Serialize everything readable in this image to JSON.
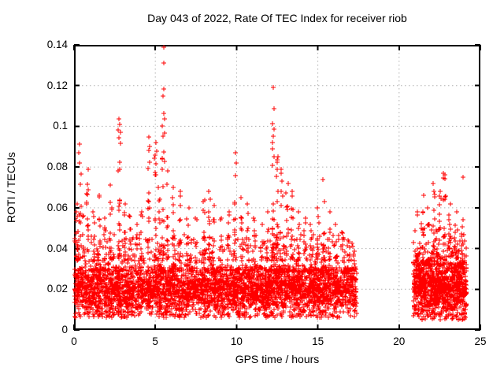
{
  "title": "Day 043 of 2022, Rate Of TEC Index for receiver riob",
  "chart_data": {
    "type": "scatter",
    "title": "Day 043 of 2022, Rate Of TEC Index for receiver riob",
    "xlabel": "GPS time / hours",
    "ylabel": "ROTI / TECUs",
    "xlim": [
      0,
      25
    ],
    "ylim": [
      0,
      0.14
    ],
    "xticks": [
      0,
      5,
      10,
      15,
      20,
      25
    ],
    "xtick_labels": [
      "0",
      "5",
      "10",
      "15",
      "20",
      "25"
    ],
    "yticks": [
      0,
      0.02,
      0.04,
      0.06,
      0.08,
      0.1,
      0.12,
      0.14
    ],
    "ytick_labels": [
      "0",
      "0.02",
      "0.04",
      "0.06",
      "0.08",
      "0.1",
      "0.12",
      "0.14"
    ],
    "grid": true,
    "legend": false,
    "marker": {
      "shape": "plus",
      "size": 7,
      "color": "#ff0000"
    },
    "colors": {
      "points": "#ff0000",
      "grid": "#b0b0b0",
      "axis": "#000000",
      "background": "#ffffff"
    },
    "series": [
      {
        "name": "ROTI",
        "seed": 1337,
        "bands": [
          {
            "x0": 0.03,
            "x1": 17.38,
            "n": 3900,
            "y_min": 0.006,
            "core_lo": 0.01,
            "core_hi": 0.031,
            "tail_hi": 0.047
          },
          {
            "x0": 20.88,
            "x1": 24.15,
            "n": 1050,
            "y_min": 0.005,
            "core_lo": 0.009,
            "core_hi": 0.034,
            "tail_hi": 0.05
          }
        ],
        "bursts": [
          [
            0.22,
            0.062,
            22
          ],
          [
            0.38,
            0.082,
            12
          ],
          [
            0.6,
            0.056,
            10
          ],
          [
            0.85,
            0.079,
            14
          ],
          [
            1.2,
            0.058,
            10
          ],
          [
            1.55,
            0.066,
            12
          ],
          [
            1.9,
            0.055,
            9
          ],
          [
            2.3,
            0.071,
            11
          ],
          [
            2.78,
            0.097,
            20
          ],
          [
            3.1,
            0.062,
            10
          ],
          [
            3.45,
            0.056,
            9
          ],
          [
            3.8,
            0.052,
            8
          ],
          [
            4.15,
            0.058,
            9
          ],
          [
            4.6,
            0.088,
            15
          ],
          [
            5.0,
            0.086,
            16
          ],
          [
            5.25,
            0.07,
            11
          ],
          [
            5.5,
            0.095,
            18
          ],
          [
            5.75,
            0.078,
            11
          ],
          [
            6.1,
            0.07,
            9
          ],
          [
            6.5,
            0.068,
            11
          ],
          [
            7.0,
            0.06,
            9
          ],
          [
            7.5,
            0.055,
            8
          ],
          [
            8.0,
            0.064,
            12
          ],
          [
            8.3,
            0.068,
            14
          ],
          [
            8.6,
            0.061,
            9
          ],
          [
            9.0,
            0.055,
            8
          ],
          [
            9.5,
            0.058,
            9
          ],
          [
            9.9,
            0.082,
            14
          ],
          [
            10.3,
            0.065,
            9
          ],
          [
            10.7,
            0.062,
            9
          ],
          [
            11.1,
            0.055,
            8
          ],
          [
            11.5,
            0.052,
            8
          ],
          [
            11.9,
            0.058,
            9
          ],
          [
            12.25,
            0.092,
            20
          ],
          [
            12.5,
            0.085,
            18
          ],
          [
            12.75,
            0.079,
            14
          ],
          [
            13.1,
            0.072,
            12
          ],
          [
            13.4,
            0.068,
            11
          ],
          [
            13.8,
            0.058,
            9
          ],
          [
            14.2,
            0.055,
            8
          ],
          [
            14.6,
            0.052,
            8
          ],
          [
            15.0,
            0.06,
            9
          ],
          [
            15.35,
            0.074,
            11
          ],
          [
            15.7,
            0.058,
            8
          ],
          [
            16.1,
            0.052,
            7
          ],
          [
            16.5,
            0.048,
            6
          ],
          [
            16.9,
            0.044,
            6
          ],
          [
            17.2,
            0.041,
            5
          ],
          [
            21.1,
            0.058,
            9
          ],
          [
            21.45,
            0.066,
            11
          ],
          [
            21.8,
            0.06,
            9
          ],
          [
            22.15,
            0.072,
            12
          ],
          [
            22.5,
            0.068,
            11
          ],
          [
            22.78,
            0.076,
            13
          ],
          [
            23.1,
            0.062,
            9
          ],
          [
            23.5,
            0.058,
            9
          ],
          [
            23.9,
            0.054,
            8
          ]
        ],
        "outliers": [
          [
            5.5,
            0.1388
          ],
          [
            5.5,
            0.131
          ],
          [
            5.53,
            0.1185
          ],
          [
            5.47,
            0.1148
          ],
          [
            5.5,
            0.1062
          ],
          [
            5.56,
            0.1035
          ],
          [
            5.44,
            0.1
          ],
          [
            5.59,
            0.0965
          ],
          [
            12.24,
            0.1192
          ],
          [
            12.29,
            0.1088
          ],
          [
            12.22,
            0.1012
          ],
          [
            12.31,
            0.0985
          ],
          [
            12.26,
            0.0952
          ],
          [
            2.76,
            0.1038
          ],
          [
            2.8,
            0.1008
          ],
          [
            2.73,
            0.0982
          ],
          [
            2.78,
            0.0945
          ],
          [
            0.33,
            0.0912
          ],
          [
            0.3,
            0.087
          ],
          [
            4.58,
            0.0948
          ],
          [
            4.63,
            0.0902
          ],
          [
            5.03,
            0.092
          ],
          [
            5.07,
            0.0878
          ],
          [
            9.93,
            0.087
          ],
          [
            22.7,
            0.077
          ],
          [
            22.74,
            0.0748
          ],
          [
            23.95,
            0.0752
          ]
        ]
      }
    ]
  }
}
